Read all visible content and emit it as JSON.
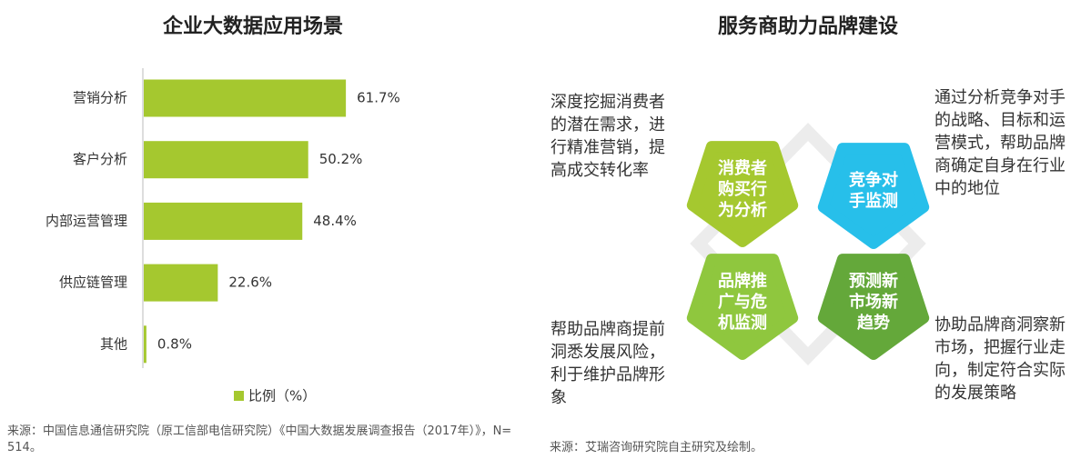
{
  "chart_data": {
    "type": "bar",
    "orientation": "horizontal",
    "title": "企业大数据应用场景",
    "categories": [
      "营销分析",
      "客户分析",
      "内部运营管理",
      "供应链管理",
      "其他"
    ],
    "series": [
      {
        "name": "比例（%）",
        "color": "#a5c82f",
        "values": [
          61.7,
          50.2,
          48.4,
          22.6,
          0.8
        ],
        "value_labels": [
          "61.7%",
          "50.2%",
          "48.4%",
          "22.6%",
          "0.8%"
        ]
      }
    ],
    "source": "来源：中国信息通信研究院（原工信部电信研究院）《中国大数据发展调查报告（2017年）》，N=514。"
  },
  "diagram": {
    "title": "服务商助力品牌建设",
    "nodes": [
      {
        "label": "消费者购买行为分析",
        "color": "#a5c82f",
        "description": "深度挖掘消费者的潜在需求，进行精准营销，提高成交转化率"
      },
      {
        "label": "竞争对手监测",
        "color": "#27bfea",
        "description": "通过分析竞争对手的战略、目标和运营模式，帮助品牌商确定自身在行业中的地位"
      },
      {
        "label": "品牌推广与危机监测",
        "color": "#8fc73e",
        "description": "帮助品牌商提前洞悉发展风险，利于维护品牌形象"
      },
      {
        "label": "预测新市场新趋势",
        "color": "#64a83a",
        "description": "协助品牌商洞察新市场，把握行业走向，制定符合实际的发展策略"
      }
    ],
    "source": "来源：艾瑞咨询研究院自主研究及绘制。"
  }
}
